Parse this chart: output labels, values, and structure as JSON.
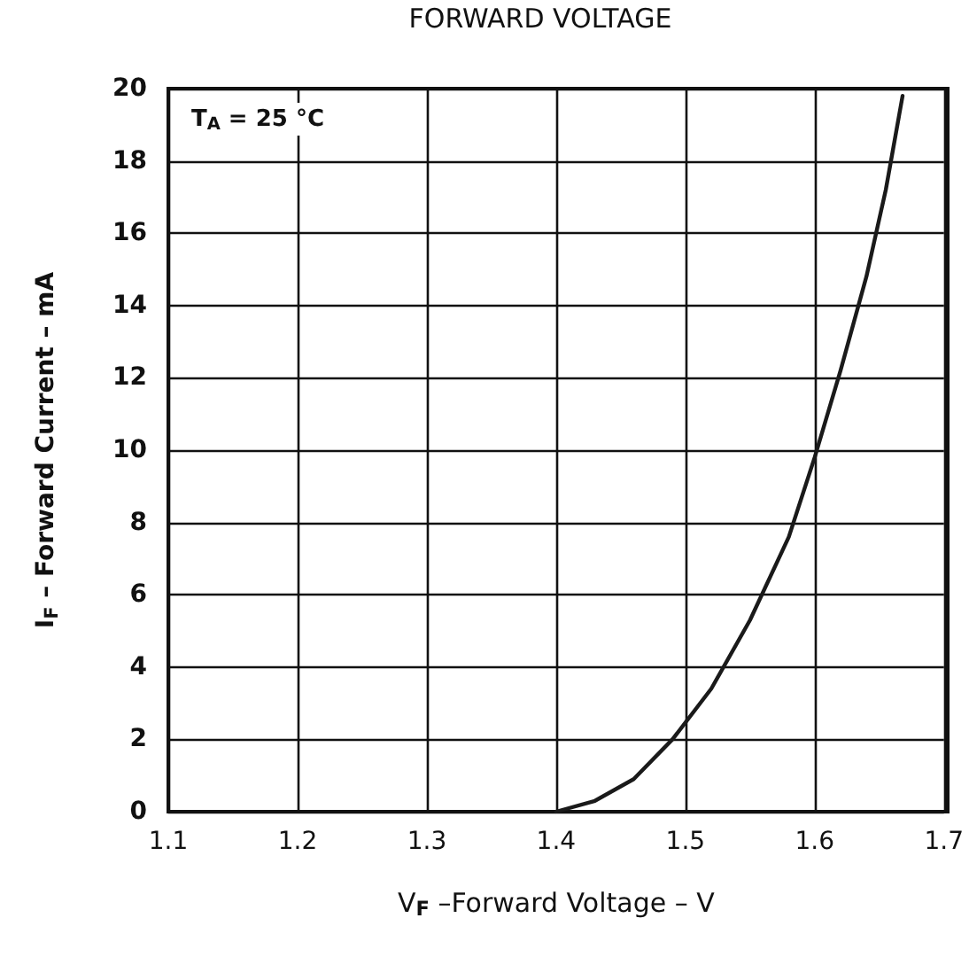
{
  "chart_data": {
    "type": "line",
    "title": "FORWARD VOLTAGE",
    "xlabel": "V$_{F}$ –Forward Voltage – V",
    "ylabel": "I$_{F}$ – Forward Current – mA",
    "annotations": [
      "T$_{A}$ = 25 °C"
    ],
    "series": [
      {
        "color": "#1a1a1a",
        "x": [
          1.4,
          1.43,
          1.46,
          1.49,
          1.52,
          1.55,
          1.58,
          1.6,
          1.62,
          1.64,
          1.655,
          1.668
        ],
        "values": [
          0,
          0.3,
          0.9,
          2,
          3.4,
          5.3,
          7.6,
          9.8,
          12.2,
          14.8,
          17.2,
          19.8
        ]
      }
    ],
    "xlim": [
      1.1,
      1.7
    ],
    "xticks": [
      1.1,
      1.2,
      1.3,
      1.4,
      1.5,
      1.6,
      1.7
    ],
    "ylim": [
      0,
      20
    ],
    "yticks": [
      0,
      2,
      4,
      6,
      8,
      10,
      12,
      14,
      16,
      18,
      20
    ],
    "grid": true,
    "marker": "none",
    "line_style": "solid"
  }
}
